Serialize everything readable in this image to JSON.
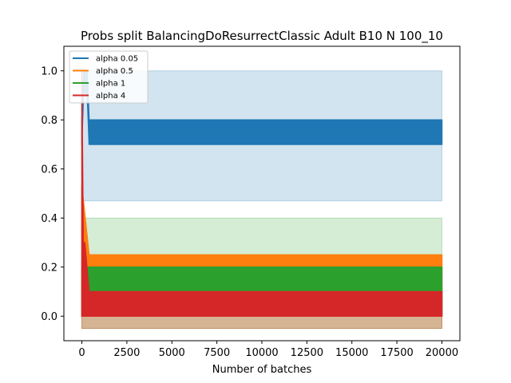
{
  "chart_data": {
    "type": "line",
    "title": "Probs split BalancingDoResurrectClassic Adult B10 N 100_10",
    "xlabel": "Number of batches",
    "ylabel": "",
    "xlim": [
      -1000,
      21000
    ],
    "ylim": [
      -0.1,
      1.1
    ],
    "xticks": [
      0,
      2500,
      5000,
      7500,
      10000,
      12500,
      15000,
      17500,
      20000
    ],
    "xtick_labels": [
      "0",
      "2500",
      "5000",
      "7500",
      "10000",
      "12500",
      "15000",
      "17500",
      "20000"
    ],
    "yticks": [
      0.0,
      0.2,
      0.4,
      0.6,
      0.8,
      1.0
    ],
    "ytick_labels": [
      "0.0",
      "0.2",
      "0.4",
      "0.6",
      "0.8",
      "1.0"
    ],
    "grid": false,
    "legend_position": "top-left",
    "series": [
      {
        "name": "alpha 0.05",
        "color": "#1f77b4",
        "x": [
          0,
          400,
          20000
        ],
        "band_x": [
          0,
          400,
          20000
        ],
        "band_low": [
          0.47,
          0.47,
          0.47
        ],
        "band_high": [
          1.0,
          1.0,
          1.0
        ],
        "osc_x": [
          0,
          100,
          200,
          300,
          400,
          20000
        ],
        "osc_low": [
          0.7,
          0.93,
          0.9,
          0.9,
          0.7,
          0.7
        ],
        "osc_high": [
          0.8,
          1.0,
          1.0,
          1.0,
          0.8,
          0.8
        ]
      },
      {
        "name": "alpha 0.5",
        "color": "#ff7f0e",
        "x": [
          0,
          400,
          20000
        ],
        "band_x": [
          0,
          400,
          20000
        ],
        "band_low": [
          -0.05,
          -0.05,
          -0.05
        ],
        "band_high": [
          0.53,
          0.25,
          0.25
        ],
        "osc_x": [
          0,
          400,
          20000
        ],
        "osc_low": [
          0.0,
          0.0,
          0.0
        ],
        "osc_high": [
          0.53,
          0.25,
          0.25
        ]
      },
      {
        "name": "alpha 1",
        "color": "#2ca02c",
        "x": [
          0,
          400,
          20000
        ],
        "band_x": [
          0,
          400,
          20000
        ],
        "band_low": [
          -0.05,
          -0.05,
          -0.05
        ],
        "band_high": [
          0.4,
          0.4,
          0.4
        ],
        "osc_x": [
          0,
          400,
          20000
        ],
        "osc_low": [
          0.0,
          0.0,
          0.0
        ],
        "osc_high": [
          0.2,
          0.2,
          0.2
        ]
      },
      {
        "name": "alpha 4",
        "color": "#d62728",
        "x": [
          0,
          400,
          20000
        ],
        "band_x": [
          0,
          400,
          20000
        ],
        "band_low": [
          -0.05,
          -0.05,
          -0.05
        ],
        "band_high": [
          0.3,
          0.1,
          0.1
        ],
        "osc_x": [
          0,
          80,
          160,
          400,
          20000
        ],
        "osc_low": [
          0.0,
          0.0,
          0.0,
          0.0,
          0.0
        ],
        "osc_high": [
          1.0,
          0.3,
          0.3,
          0.1,
          0.1
        ]
      }
    ]
  }
}
